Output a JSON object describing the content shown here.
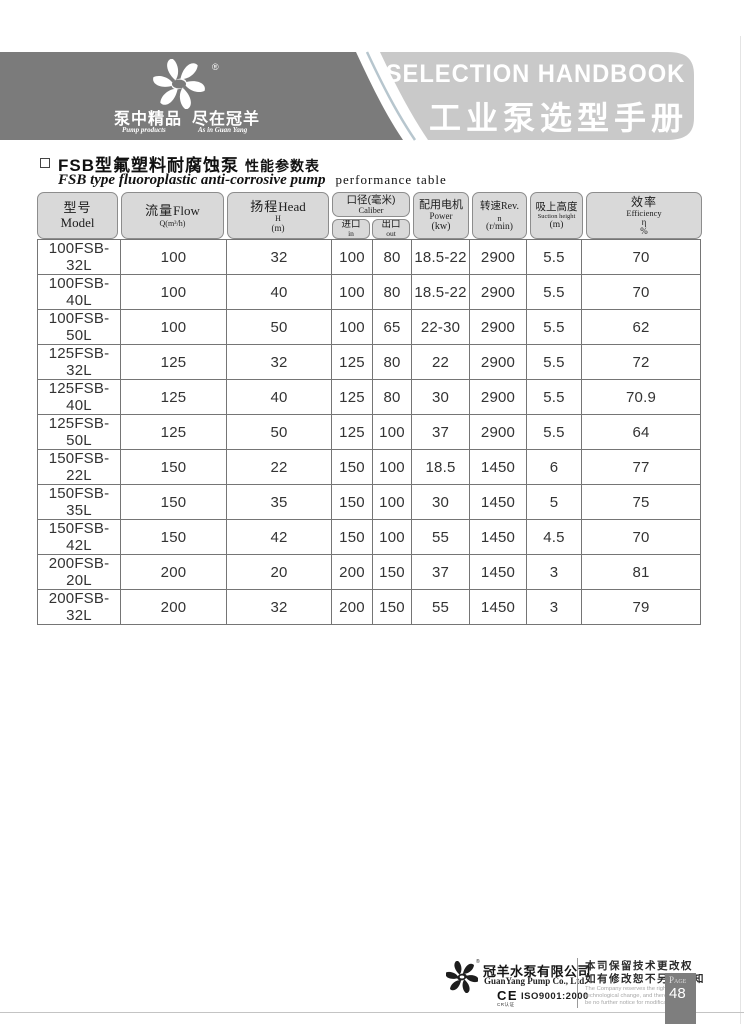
{
  "header": {
    "dark_band_color": "#7b7b7b",
    "light_band_color": "#c9c9c9",
    "brand": {
      "registered_mark": "®",
      "slogan_cn_1": "泵中精品",
      "slogan_cn_2": "尽在冠羊",
      "slogan_en_1": "Pump products",
      "slogan_en_2": "As in Guan Yang"
    },
    "handbook_title_en": "SELECTION HANDBOOK",
    "handbook_title_cn": "工业泵选型手册"
  },
  "section_title": {
    "cn_main": "FSB型氟塑料耐腐蚀泵",
    "cn_sub": "性能参数表",
    "en_main": "FSB type fluoroplastic anti-corrosive pump",
    "en_sub": "performance table"
  },
  "table": {
    "header": {
      "model_cn": "型号",
      "model_en": "Model",
      "flow_cn": "流量",
      "flow_en": "Flow",
      "flow_sub": "Q(m³/h)",
      "head_cn": "扬程",
      "head_en": "Head",
      "head_sub1": "H",
      "head_sub2": "(m)",
      "caliber_cn": "口径(毫米)",
      "caliber_en": "Caliber",
      "in_cn": "进口",
      "in_en": "in",
      "out_cn": "出口",
      "out_en": "out",
      "power_cn": "配用电机",
      "power_en": "Power",
      "power_unit": "(kw)",
      "rev_cn": "转速",
      "rev_en": "Rev.",
      "rev_sub": "n",
      "rev_unit": "(r/min)",
      "suction_cn": "吸上高度",
      "suction_en": "Suction height",
      "suction_unit": "(m)",
      "eff_cn": "效率",
      "eff_en": "Efficiency",
      "eff_sub": "η",
      "eff_unit": "%"
    },
    "rows": [
      {
        "model": "100FSB-32L",
        "flow": "100",
        "head": "32",
        "in": "100",
        "out": "80",
        "power": "18.5-22",
        "rev": "2900",
        "suction": "5.5",
        "eff": "70"
      },
      {
        "model": "100FSB-40L",
        "flow": "100",
        "head": "40",
        "in": "100",
        "out": "80",
        "power": "18.5-22",
        "rev": "2900",
        "suction": "5.5",
        "eff": "70"
      },
      {
        "model": "100FSB-50L",
        "flow": "100",
        "head": "50",
        "in": "100",
        "out": "65",
        "power": "22-30",
        "rev": "2900",
        "suction": "5.5",
        "eff": "62"
      },
      {
        "model": "125FSB-32L",
        "flow": "125",
        "head": "32",
        "in": "125",
        "out": "80",
        "power": "22",
        "rev": "2900",
        "suction": "5.5",
        "eff": "72"
      },
      {
        "model": "125FSB-40L",
        "flow": "125",
        "head": "40",
        "in": "125",
        "out": "80",
        "power": "30",
        "rev": "2900",
        "suction": "5.5",
        "eff": "70.9"
      },
      {
        "model": "125FSB-50L",
        "flow": "125",
        "head": "50",
        "in": "125",
        "out": "100",
        "power": "37",
        "rev": "2900",
        "suction": "5.5",
        "eff": "64"
      },
      {
        "model": "150FSB-22L",
        "flow": "150",
        "head": "22",
        "in": "150",
        "out": "100",
        "power": "18.5",
        "rev": "1450",
        "suction": "6",
        "eff": "77"
      },
      {
        "model": "150FSB-35L",
        "flow": "150",
        "head": "35",
        "in": "150",
        "out": "100",
        "power": "30",
        "rev": "1450",
        "suction": "5",
        "eff": "75"
      },
      {
        "model": "150FSB-42L",
        "flow": "150",
        "head": "42",
        "in": "150",
        "out": "100",
        "power": "55",
        "rev": "1450",
        "suction": "4.5",
        "eff": "70"
      },
      {
        "model": "200FSB-20L",
        "flow": "200",
        "head": "20",
        "in": "200",
        "out": "150",
        "power": "37",
        "rev": "1450",
        "suction": "3",
        "eff": "81"
      },
      {
        "model": "200FSB-32L",
        "flow": "200",
        "head": "32",
        "in": "200",
        "out": "150",
        "power": "55",
        "rev": "1450",
        "suction": "3",
        "eff": "79"
      }
    ]
  },
  "footer": {
    "registered_mark": "®",
    "company_cn": "冠羊水泵有限公司",
    "company_en": "GuanYang Pump Co., Ltd.",
    "ce_mark": "CE",
    "ce_sub": "CR认证",
    "iso": "ISO9001:2000",
    "notice_cn_1": "本司保留技术更改权",
    "notice_cn_2": "如有修改恕不另行通知",
    "notice_en_1": "The Company reserves the right of",
    "notice_en_2": "technological change, and there will",
    "notice_en_3": "be no further notice for modification.",
    "page_label": "Page",
    "page_number": "48"
  }
}
